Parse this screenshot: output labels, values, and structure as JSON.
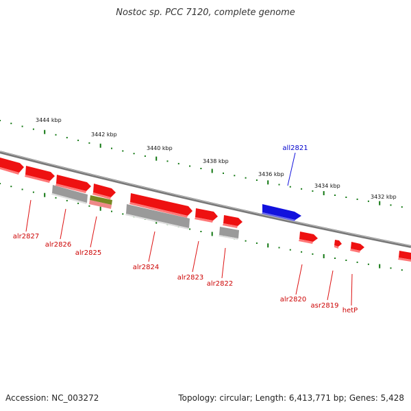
{
  "title": "Nostoc sp. PCC 7120, complete genome",
  "footer": {
    "accession": "Accession: NC_003272",
    "summary": "Topology: circular; Length: 6,413,771 bp; Genes: 5,428"
  },
  "scale": {
    "unit_label": "kbp",
    "ticks": [
      "3444 kbp",
      "3442 kbp",
      "3440 kbp",
      "3438 kbp",
      "3436 kbp",
      "3434 kbp",
      "3432 kbp"
    ]
  },
  "colors": {
    "forward_gene": "#ee1111",
    "reverse_gene": "#1111dd",
    "backbone": "#888888",
    "tick": "#117711",
    "rna_band": "#aaaaaa",
    "olive_band": "#778822",
    "pink_band": "#ee8888"
  },
  "genes": [
    {
      "name": "alr2827",
      "strand": "forward"
    },
    {
      "name": "alr2826",
      "strand": "forward"
    },
    {
      "name": "alr2825",
      "strand": "forward"
    },
    {
      "name": "alr2824",
      "strand": "forward"
    },
    {
      "name": "alr2823",
      "strand": "forward"
    },
    {
      "name": "alr2822",
      "strand": "forward"
    },
    {
      "name": "all2821",
      "strand": "reverse"
    },
    {
      "name": "alr2820",
      "strand": "forward"
    },
    {
      "name": "asr2819",
      "strand": "forward"
    },
    {
      "name": "hetP",
      "strand": "forward"
    }
  ]
}
